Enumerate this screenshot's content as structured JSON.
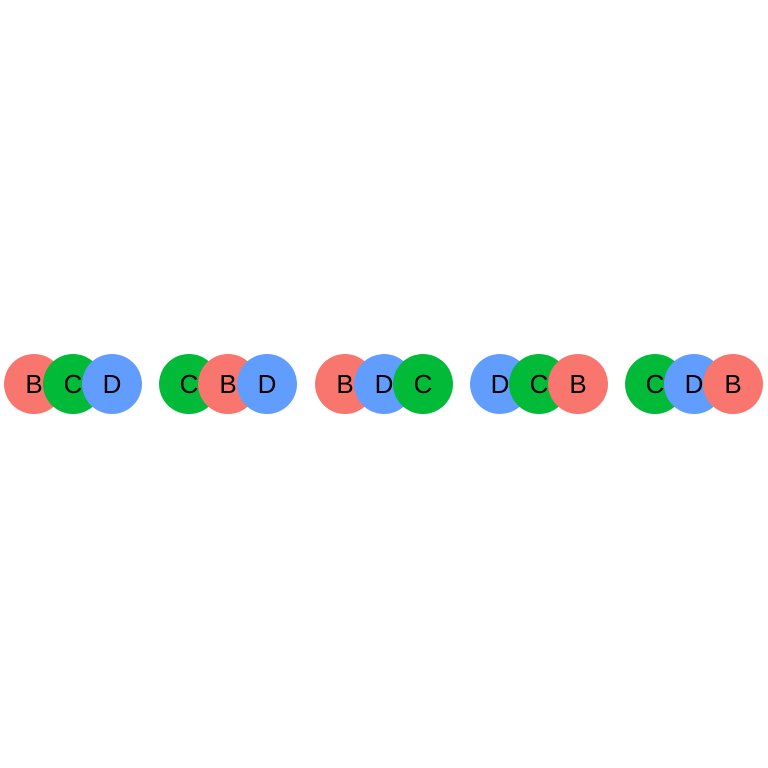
{
  "colors": {
    "B": "#F8766D",
    "C": "#00BA38",
    "D": "#619CFF"
  },
  "groups": [
    {
      "order": [
        "B",
        "C",
        "D"
      ]
    },
    {
      "order": [
        "C",
        "B",
        "D"
      ]
    },
    {
      "order": [
        "B",
        "D",
        "C"
      ]
    },
    {
      "order": [
        "D",
        "C",
        "B"
      ]
    },
    {
      "order": [
        "C",
        "D",
        "B"
      ]
    }
  ]
}
